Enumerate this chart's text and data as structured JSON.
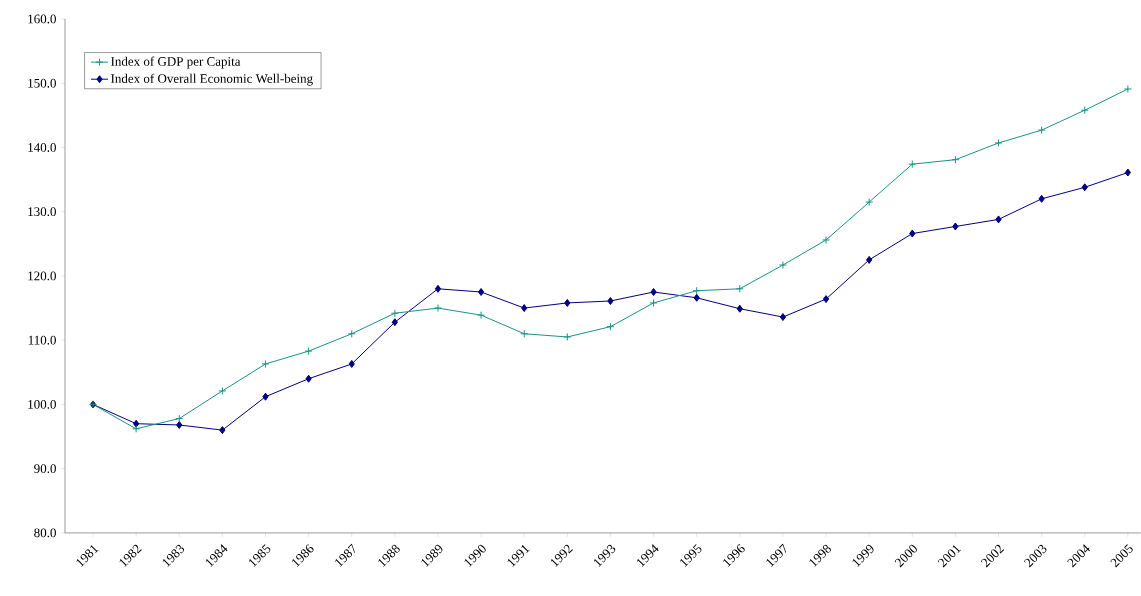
{
  "chart_data": {
    "type": "line",
    "categories": [
      "1981",
      "1982",
      "1983",
      "1984",
      "1985",
      "1986",
      "1987",
      "1988",
      "1989",
      "1990",
      "1991",
      "1992",
      "1993",
      "1994",
      "1995",
      "1996",
      "1997",
      "1998",
      "1999",
      "2000",
      "2001",
      "2002",
      "2003",
      "2004",
      "2005"
    ],
    "series": [
      {
        "name": "Index of GDP per Capita",
        "color": "#1a9385",
        "marker": "cross",
        "values": [
          100.0,
          96.2,
          97.8,
          102.1,
          106.3,
          108.3,
          111.0,
          114.2,
          115.0,
          113.9,
          111.0,
          110.5,
          112.1,
          115.8,
          117.7,
          118.0,
          121.7,
          125.6,
          131.5,
          137.4,
          138.1,
          140.7,
          142.7,
          145.8,
          149.1
        ]
      },
      {
        "name": "Index of Overall Economic Well-being",
        "color": "#000080",
        "marker": "diamond",
        "values": [
          100.0,
          97.0,
          96.8,
          96.0,
          101.2,
          104.0,
          106.3,
          112.8,
          118.0,
          117.5,
          115.0,
          115.8,
          116.1,
          117.5,
          116.6,
          114.9,
          113.6,
          116.4,
          122.5,
          126.6,
          127.7,
          128.8,
          132.0,
          133.8,
          136.1
        ]
      }
    ],
    "ylim": [
      80,
      160
    ],
    "yticks": [
      {
        "value": 80,
        "label": "80.0"
      },
      {
        "value": 90,
        "label": "90.0"
      },
      {
        "value": 100,
        "label": "100.0"
      },
      {
        "value": 110,
        "label": "110.0"
      },
      {
        "value": 120,
        "label": "120.0"
      },
      {
        "value": 130,
        "label": "130.0"
      },
      {
        "value": 140,
        "label": "140.0"
      },
      {
        "value": 150,
        "label": "150.0"
      },
      {
        "value": 160,
        "label": "160.0"
      }
    ],
    "grid": false,
    "legend": "top left"
  }
}
